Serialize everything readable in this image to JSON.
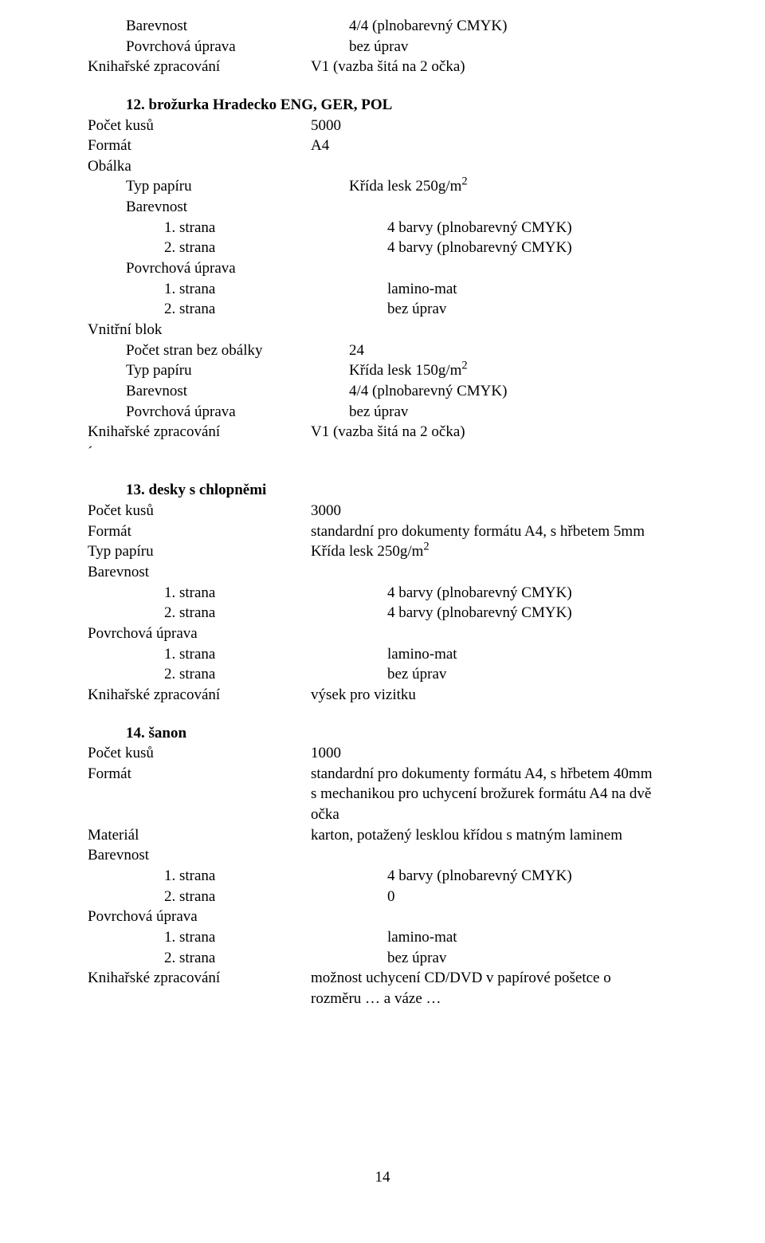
{
  "intro": {
    "rows": [
      {
        "label": "Barevnost",
        "value": "4/4 (plnobarevný CMYK)",
        "labelIndent": 1
      },
      {
        "label": "Povrchová úprava",
        "value": "bez úprav",
        "labelIndent": 1
      },
      {
        "label": "Knihařské zpracování",
        "value": "V1 (vazba šitá na 2 očka)",
        "labelIndent": 0
      }
    ]
  },
  "sec12": {
    "title": "12. brožurka Hradecko ENG, GER, POL",
    "rows1": [
      {
        "label": "Počet kusů",
        "value": "5000",
        "labelIndent": 0
      },
      {
        "label": "Formát",
        "value": "A4",
        "labelIndent": 0
      },
      {
        "label": "Obálka",
        "value": "",
        "labelIndent": 0
      }
    ],
    "typPapiruLabel": "Typ papíru",
    "typPapiruPrefix": "Křída lesk 250g/m",
    "typPapiruExp": "2",
    "rows2": [
      {
        "label": "Barevnost",
        "value": "",
        "labelIndent": 1
      },
      {
        "label": "1. strana",
        "value": "4 barvy (plnobarevný CMYK)",
        "labelIndent": 2
      },
      {
        "label": "2. strana",
        "value": "4 barvy (plnobarevný CMYK)",
        "labelIndent": 2
      },
      {
        "label": "Povrchová úprava",
        "value": "",
        "labelIndent": 1
      },
      {
        "label": "1. strana",
        "value": "lamino-mat",
        "labelIndent": 2
      },
      {
        "label": "2. strana",
        "value": "bez úprav",
        "labelIndent": 2
      },
      {
        "label": "Vnitřní blok",
        "value": "",
        "labelIndent": 0
      },
      {
        "label": "Počet stran bez obálky",
        "value": "24",
        "labelIndent": 1
      }
    ],
    "vb_typPapiruLabel": "Typ papíru",
    "vb_typPapiruPrefix": "Křída lesk 150g/m",
    "vb_typPapiruExp": "2",
    "rows3": [
      {
        "label": "Barevnost",
        "value": "4/4 (plnobarevný CMYK)",
        "labelIndent": 1
      },
      {
        "label": "Povrchová úprava",
        "value": "bez úprav",
        "labelIndent": 1
      },
      {
        "label": "Knihařské zpracování",
        "value": "V1 (vazba šitá na 2 očka)",
        "labelIndent": 0
      },
      {
        "label": "´",
        "value": "",
        "labelIndent": 0
      }
    ]
  },
  "sec13": {
    "title": "13. desky s chlopněmi",
    "rows1": [
      {
        "label": "Počet kusů",
        "value": "3000",
        "labelIndent": 0
      },
      {
        "label": "Formát",
        "value": "standardní pro dokumenty formátu A4, s hřbetem 5mm",
        "labelIndent": 0
      }
    ],
    "typPapiruLabel": "Typ papíru",
    "typPapiruPrefix": "Křída lesk 250g/m",
    "typPapiruExp": "2",
    "rows2": [
      {
        "label": "Barevnost",
        "value": "",
        "labelIndent": 0
      },
      {
        "label": "1. strana",
        "value": "4 barvy (plnobarevný CMYK)",
        "labelIndent": 2
      },
      {
        "label": "2. strana",
        "value": "4 barvy (plnobarevný CMYK)",
        "labelIndent": 2
      },
      {
        "label": "Povrchová úprava",
        "value": "",
        "labelIndent": 0
      },
      {
        "label": "1. strana",
        "value": "lamino-mat",
        "labelIndent": 2
      },
      {
        "label": "2. strana",
        "value": "bez úprav",
        "labelIndent": 2
      },
      {
        "label": "Knihařské zpracování",
        "value": "výsek pro vizitku",
        "labelIndent": 0
      }
    ]
  },
  "sec14": {
    "title": "14. šanon",
    "rows1": [
      {
        "label": "Počet kusů",
        "value": "1000",
        "labelIndent": 0
      },
      {
        "label": "Formát",
        "value": "standardní pro dokumenty formátu A4, s hřbetem 40mm",
        "labelIndent": 0
      },
      {
        "label": "",
        "value": "s mechanikou pro uchycení brožurek formátu A4 na dvě",
        "labelIndent": 0
      },
      {
        "label": "",
        "value": "očka",
        "labelIndent": 0
      },
      {
        "label": "Materiál",
        "value": "karton, potažený lesklou křídou s matným laminem",
        "labelIndent": 0
      },
      {
        "label": "Barevnost",
        "value": "",
        "labelIndent": 0
      },
      {
        "label": "1. strana",
        "value": "4 barvy (plnobarevný CMYK)",
        "labelIndent": 2
      },
      {
        "label": "2. strana",
        "value": "0",
        "labelIndent": 2
      },
      {
        "label": "Povrchová úprava",
        "value": "",
        "labelIndent": 0
      },
      {
        "label": "1. strana",
        "value": "lamino-mat",
        "labelIndent": 2
      },
      {
        "label": "2. strana",
        "value": "bez úprav",
        "labelIndent": 2
      },
      {
        "label": "Knihařské zpracování",
        "value": "možnost uchycení CD/DVD v papírové pošetce o",
        "labelIndent": 0
      },
      {
        "label": "",
        "value": "rozměru … a váze …",
        "labelIndent": 0
      }
    ]
  },
  "pageNumber": "14"
}
